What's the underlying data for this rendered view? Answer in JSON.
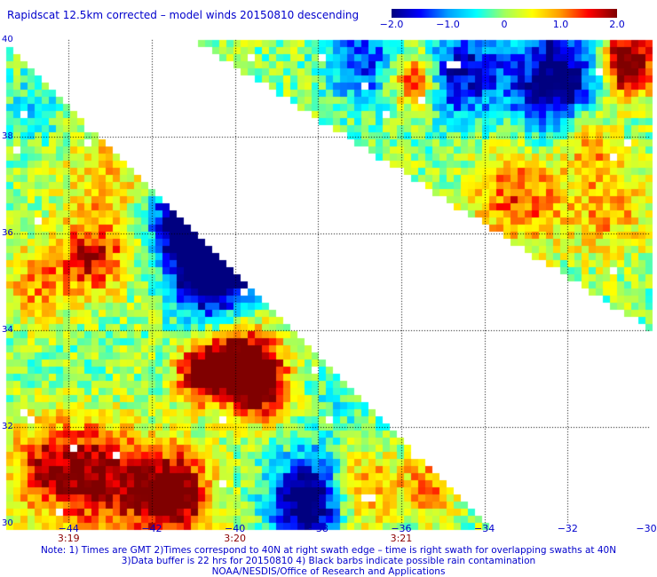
{
  "title": "Rapidscat 12.5km corrected – model winds 20150810 descending",
  "colorbar": {
    "min": -2.0,
    "max": 2.0,
    "stops": [
      "#000080",
      "#0000ff",
      "#00a0ff",
      "#00ffff",
      "#a0ff60",
      "#ffff00",
      "#ff9900",
      "#ff0000",
      "#800000"
    ],
    "labels": [
      {
        "value": -2.0,
        "text": "−2.0"
      },
      {
        "value": -1.0,
        "text": "−1.0"
      },
      {
        "value": 0,
        "text": "0"
      },
      {
        "value": 1.0,
        "text": "1.0"
      },
      {
        "value": 2.0,
        "text": "2.0"
      }
    ]
  },
  "map": {
    "lon_range": [
      -45.5,
      -30
    ],
    "lat_range": [
      30,
      40
    ],
    "lat_labels": [
      {
        "lat": 40,
        "text": "40"
      },
      {
        "lat": 38,
        "text": "38"
      },
      {
        "lat": 36,
        "text": "36"
      },
      {
        "lat": 34,
        "text": "34"
      },
      {
        "lat": 32,
        "text": "32"
      },
      {
        "lat": 30,
        "text": "30"
      }
    ],
    "lon_labels": [
      {
        "lon": -44,
        "text": "−44"
      },
      {
        "lon": -42,
        "text": "−42"
      },
      {
        "lon": -40,
        "text": "−40"
      },
      {
        "lon": -38,
        "text": "−38"
      },
      {
        "lon": -36,
        "text": "−36"
      },
      {
        "lon": -34,
        "text": "−34"
      },
      {
        "lon": -32,
        "text": "−32"
      },
      {
        "lon": -30,
        "text": "−30"
      }
    ],
    "time_labels": [
      {
        "lon": -44,
        "text": "3:19"
      },
      {
        "lon": -40,
        "text": "3:20"
      },
      {
        "lon": -36,
        "text": "3:21"
      }
    ],
    "grid": "dotted"
  },
  "notes": {
    "line1": "Note: 1) Times are GMT 2)Times correspond to 40N at right swath edge – time is right swath for overlapping swaths at 40N",
    "line2": "3)Data buffer is 22 hrs for 20150810 4) Black barbs indicate possible rain contamination",
    "line3": "NOAA/NESDIS/Office of Research and Applications"
  }
}
